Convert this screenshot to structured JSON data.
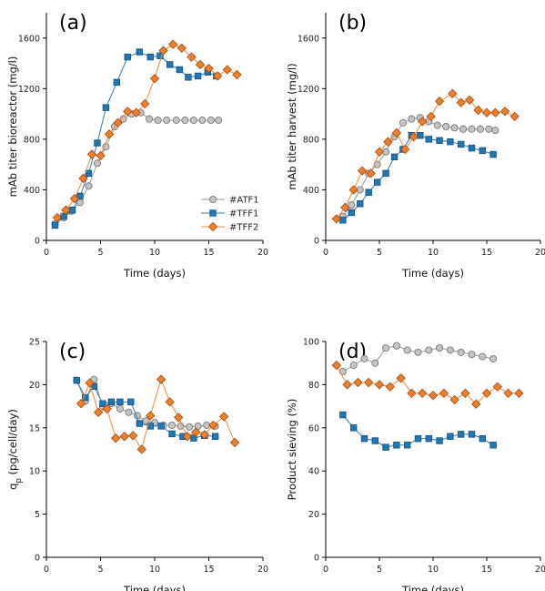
{
  "colors": {
    "ATF1": {
      "line": "#9a9a9a",
      "fill": "#c4c4c4",
      "edge": "#6f6f6f"
    },
    "TFF1": {
      "line": "#2c7bb6",
      "fill": "#1f77b4",
      "edge": "#1a4f7a"
    },
    "TFF2": {
      "line": "#ef8a3c",
      "fill": "#ef7f2a",
      "edge": "#a04a10"
    }
  },
  "chart_data": [
    {
      "type": "line",
      "panel_label": "(a)",
      "xlabel": "Time (days)",
      "ylabel": "mAb titer bioreactor (mg/l)",
      "xlim": [
        0,
        20
      ],
      "ylim": [
        0,
        1800
      ],
      "xticks": [
        0,
        5,
        10,
        15,
        20
      ],
      "yticks": [
        0,
        400,
        800,
        1200,
        1600
      ],
      "legend": {
        "position": "center-right",
        "entries": [
          "#ATF1",
          "#TFF1",
          "#TFF2"
        ]
      },
      "series": [
        {
          "name": "#ATF1",
          "marker": "circle",
          "x": [
            0.8,
            1.6,
            2.3,
            3.1,
            3.9,
            4.7,
            5.5,
            6.3,
            7.1,
            7.9,
            8.7,
            9.5,
            10.3,
            11.1,
            12.0,
            12.8,
            13.6,
            14.4,
            15.2,
            15.9
          ],
          "y": [
            130,
            180,
            230,
            300,
            430,
            610,
            740,
            900,
            960,
            1000,
            1010,
            960,
            950,
            950,
            950,
            950,
            950,
            950,
            950,
            950
          ]
        },
        {
          "name": "#TFF1",
          "marker": "square",
          "x": [
            0.8,
            1.6,
            2.4,
            3.1,
            3.9,
            4.7,
            5.5,
            6.5,
            7.5,
            8.6,
            9.6,
            10.5,
            11.4,
            12.3,
            13.1,
            14.0,
            14.9,
            15.7
          ],
          "y": [
            120,
            190,
            240,
            350,
            530,
            770,
            1050,
            1250,
            1450,
            1490,
            1450,
            1460,
            1390,
            1350,
            1290,
            1300,
            1330,
            1300
          ]
        },
        {
          "name": "#TFF2",
          "marker": "diamond",
          "x": [
            1.0,
            1.8,
            2.6,
            3.4,
            4.2,
            5.0,
            5.8,
            6.6,
            7.5,
            8.3,
            9.1,
            10.0,
            10.8,
            11.7,
            12.5,
            13.4,
            14.2,
            15.0,
            15.8,
            16.7,
            17.6
          ],
          "y": [
            180,
            240,
            330,
            490,
            680,
            670,
            840,
            930,
            1020,
            1010,
            1080,
            1280,
            1500,
            1550,
            1520,
            1450,
            1390,
            1360,
            1300,
            1350,
            1310
          ]
        }
      ]
    },
    {
      "type": "line",
      "panel_label": "(b)",
      "xlabel": "Time (days)",
      "ylabel": "mAb titer harvest (mg/l)",
      "xlim": [
        0,
        20
      ],
      "ylim": [
        0,
        1800
      ],
      "xticks": [
        0,
        5,
        10,
        15,
        20
      ],
      "yticks": [
        0,
        400,
        800,
        1200,
        1600
      ],
      "series": [
        {
          "name": "#ATF1",
          "marker": "circle",
          "x": [
            1.6,
            2.4,
            3.2,
            4.0,
            4.8,
            5.6,
            6.4,
            7.2,
            8.0,
            8.8,
            9.6,
            10.4,
            11.2,
            12.0,
            12.8,
            13.6,
            14.4,
            15.2,
            15.8
          ],
          "y": [
            190,
            280,
            400,
            530,
            600,
            700,
            820,
            930,
            960,
            970,
            940,
            910,
            900,
            890,
            880,
            880,
            880,
            880,
            870
          ]
        },
        {
          "name": "#TFF1",
          "marker": "square",
          "x": [
            1.6,
            2.4,
            3.2,
            4.0,
            4.8,
            5.6,
            6.4,
            7.2,
            8.0,
            8.8,
            9.6,
            10.6,
            11.6,
            12.6,
            13.6,
            14.6,
            15.6
          ],
          "y": [
            160,
            220,
            290,
            380,
            460,
            530,
            660,
            720,
            830,
            830,
            800,
            790,
            780,
            760,
            730,
            710,
            680
          ]
        },
        {
          "name": "#TFF2",
          "marker": "diamond",
          "x": [
            1.0,
            1.8,
            2.6,
            3.4,
            4.2,
            5.0,
            5.8,
            6.6,
            7.4,
            8.2,
            9.0,
            9.8,
            10.6,
            11.8,
            12.6,
            13.4,
            14.2,
            15.0,
            15.8,
            16.7,
            17.6
          ],
          "y": [
            170,
            260,
            400,
            550,
            530,
            700,
            780,
            850,
            720,
            820,
            940,
            980,
            1100,
            1160,
            1090,
            1110,
            1030,
            1010,
            1010,
            1020,
            980
          ]
        }
      ]
    },
    {
      "type": "line",
      "panel_label": "(c)",
      "xlabel": "Time (days)",
      "ylabel": "qp (pg/cell/day)",
      "ylabel_main": "q",
      "ylabel_sub": "p",
      "ylabel_rest": " (pg/cell/day)",
      "xlim": [
        0,
        20
      ],
      "ylim": [
        0,
        25
      ],
      "xticks": [
        0,
        5,
        10,
        15,
        20
      ],
      "yticks": [
        0,
        5,
        10,
        15,
        20,
        25
      ],
      "series": [
        {
          "name": "#ATF1",
          "marker": "circle",
          "x": [
            2.8,
            3.6,
            4.4,
            5.2,
            6.0,
            6.8,
            7.6,
            8.4,
            9.2,
            10.0,
            10.8,
            11.6,
            12.4,
            13.2,
            14.0,
            14.8,
            15.6
          ],
          "y": [
            20.5,
            18.1,
            20.6,
            17.5,
            17.8,
            17.2,
            16.8,
            16.4,
            15.8,
            15.6,
            15.3,
            15.3,
            15.2,
            15.1,
            15.2,
            15.3,
            15.2
          ]
        },
        {
          "name": "#TFF1",
          "marker": "square",
          "x": [
            2.8,
            3.6,
            4.4,
            5.2,
            6.0,
            6.8,
            7.8,
            8.6,
            9.6,
            10.6,
            11.6,
            12.6,
            13.6,
            14.6,
            15.6
          ],
          "y": [
            20.5,
            18.5,
            19.8,
            17.8,
            18.0,
            18.0,
            18.0,
            15.5,
            15.2,
            15.2,
            14.3,
            14.0,
            13.8,
            14.1,
            14.0
          ]
        },
        {
          "name": "#TFF2",
          "marker": "diamond",
          "x": [
            3.2,
            4.0,
            4.8,
            5.6,
            6.4,
            7.2,
            8.0,
            8.8,
            9.6,
            10.6,
            11.4,
            12.2,
            13.0,
            13.8,
            14.6,
            15.4,
            16.4,
            17.4
          ],
          "y": [
            17.8,
            20.2,
            16.8,
            17.2,
            13.8,
            14.0,
            14.1,
            12.5,
            16.4,
            20.6,
            18.0,
            16.2,
            14.0,
            14.5,
            14.2,
            15.3,
            16.3,
            13.3
          ]
        }
      ]
    },
    {
      "type": "line",
      "panel_label": "(d)",
      "xlabel": "Time (days)",
      "ylabel": "Product sieving (%)",
      "xlim": [
        0,
        20
      ],
      "ylim": [
        0,
        100
      ],
      "xticks": [
        0,
        5,
        10,
        15,
        20
      ],
      "yticks": [
        0,
        20,
        40,
        60,
        80,
        100
      ],
      "series": [
        {
          "name": "#ATF1",
          "marker": "circle",
          "x": [
            1.6,
            2.6,
            3.6,
            4.6,
            5.6,
            6.6,
            7.6,
            8.6,
            9.6,
            10.6,
            11.6,
            12.6,
            13.6,
            14.6,
            15.6
          ],
          "y": [
            86,
            89,
            92,
            90,
            97,
            98,
            96,
            95,
            96,
            97,
            96,
            95,
            94,
            93,
            92
          ]
        },
        {
          "name": "#TFF1",
          "marker": "square",
          "x": [
            1.6,
            2.6,
            3.6,
            4.6,
            5.6,
            6.6,
            7.6,
            8.6,
            9.6,
            10.6,
            11.6,
            12.6,
            13.6,
            14.6,
            15.6
          ],
          "y": [
            66,
            60,
            55,
            54,
            51,
            52,
            52,
            55,
            55,
            54,
            56,
            57,
            57,
            55,
            52
          ]
        },
        {
          "name": "#TFF2",
          "marker": "diamond",
          "x": [
            1.0,
            2.0,
            3.0,
            4.0,
            5.0,
            6.0,
            7.0,
            8.0,
            9.0,
            10.0,
            11.0,
            12.0,
            13.0,
            14.0,
            15.0,
            16.0,
            17.0,
            18.0
          ],
          "y": [
            89,
            80,
            81,
            81,
            80,
            79,
            83,
            76,
            76,
            75,
            76,
            73,
            76,
            71,
            76,
            79,
            76,
            76
          ]
        }
      ]
    }
  ]
}
